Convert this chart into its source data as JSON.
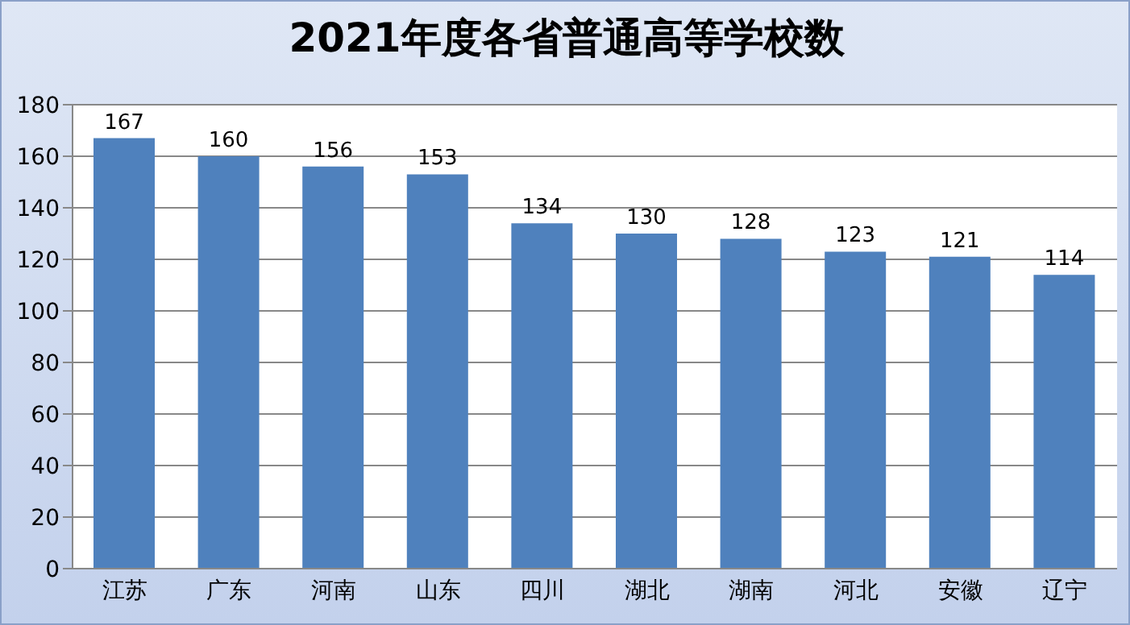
{
  "chart_data": {
    "type": "bar",
    "title": "2021年度各省普通高等学校数",
    "categories": [
      "江苏",
      "广东",
      "河南",
      "山东",
      "四川",
      "湖北",
      "湖南",
      "河北",
      "安徽",
      "辽宁"
    ],
    "values": [
      167,
      160,
      156,
      153,
      134,
      130,
      128,
      123,
      121,
      114
    ],
    "color": "#4f81bd",
    "ylim": [
      0,
      180
    ],
    "yticks": [
      0,
      20,
      40,
      60,
      80,
      100,
      120,
      140,
      160,
      180
    ],
    "grid": "y",
    "data_labels": true
  }
}
